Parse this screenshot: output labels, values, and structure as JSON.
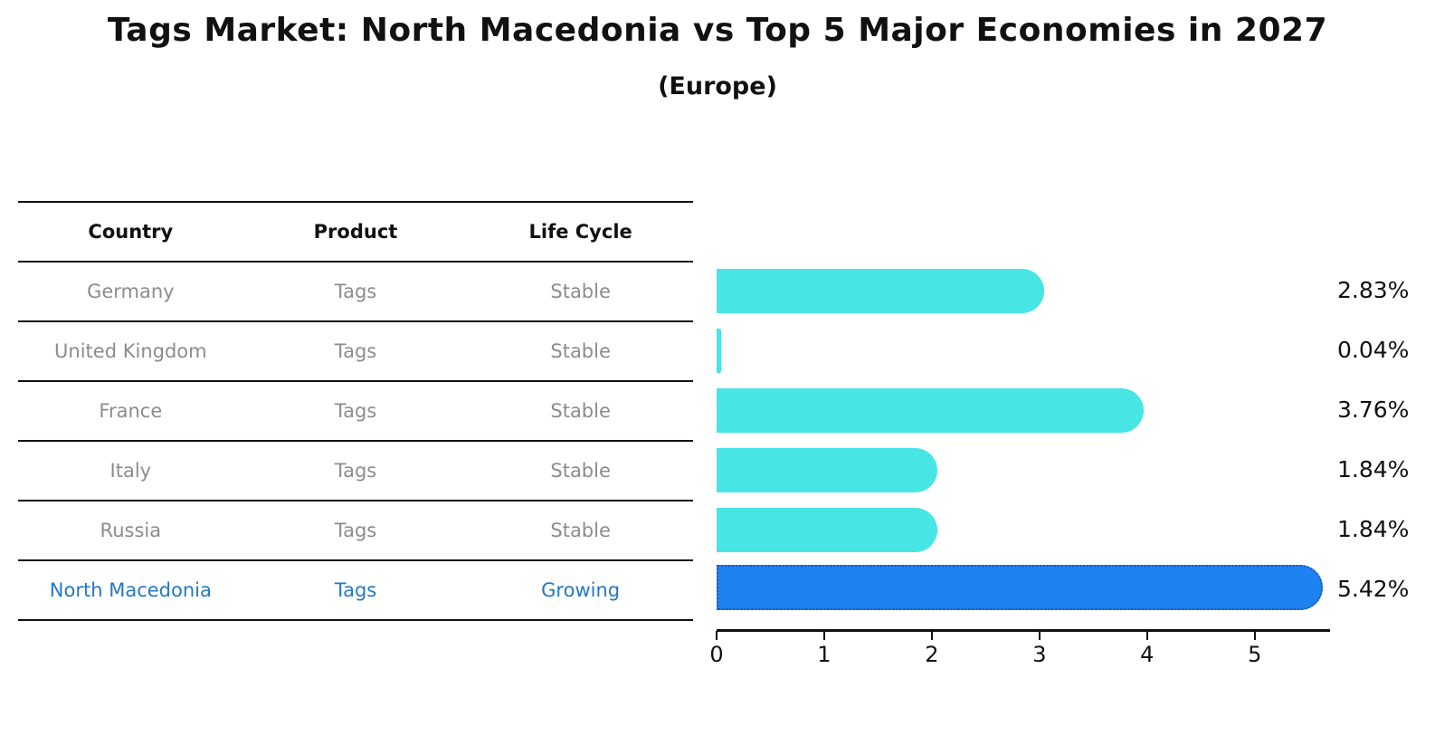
{
  "header": {
    "title": "Tags Market: North Macedonia vs Top 5 Major Economies in 2027",
    "subtitle": "(Europe)"
  },
  "table": {
    "columns": [
      "Country",
      "Product",
      "Life Cycle"
    ],
    "rows": [
      {
        "country": "Germany",
        "product": "Tags",
        "life_cycle": "Stable",
        "highlight": false
      },
      {
        "country": "United Kingdom",
        "product": "Tags",
        "life_cycle": "Stable",
        "highlight": false
      },
      {
        "country": "France",
        "product": "Tags",
        "life_cycle": "Stable",
        "highlight": false
      },
      {
        "country": "Italy",
        "product": "Tags",
        "life_cycle": "Stable",
        "highlight": false
      },
      {
        "country": "Russia",
        "product": "Tags",
        "life_cycle": "Stable",
        "highlight": false
      },
      {
        "country": "North Macedonia",
        "product": "Tags",
        "life_cycle": "Growing",
        "highlight": true
      }
    ]
  },
  "chart_data": {
    "type": "bar",
    "orientation": "horizontal",
    "title": "Tags Market: North Macedonia vs Top 5 Major Economies in 2027",
    "subtitle": "(Europe)",
    "categories": [
      "Germany",
      "United Kingdom",
      "France",
      "Italy",
      "Russia",
      "North Macedonia"
    ],
    "values": [
      2.83,
      0.04,
      3.76,
      1.84,
      1.84,
      5.42
    ],
    "value_labels": [
      "2.83%",
      "0.04%",
      "3.76%",
      "1.84%",
      "1.84%",
      "5.42%"
    ],
    "highlight_index": 5,
    "xticks": [
      "0",
      "1",
      "2",
      "3",
      "4",
      "5"
    ],
    "xlim": [
      0,
      5.7
    ],
    "xlabel": "",
    "ylabel": "",
    "grid": false,
    "legend": false,
    "bar_color": "#48e5e5",
    "highlight_color": "#1e82f0",
    "highlight_border_color": "#1659c2"
  },
  "colors": {
    "text_gray": "#8c8c8c",
    "highlight_text": "#2478c8",
    "axis_line": "#111111"
  }
}
